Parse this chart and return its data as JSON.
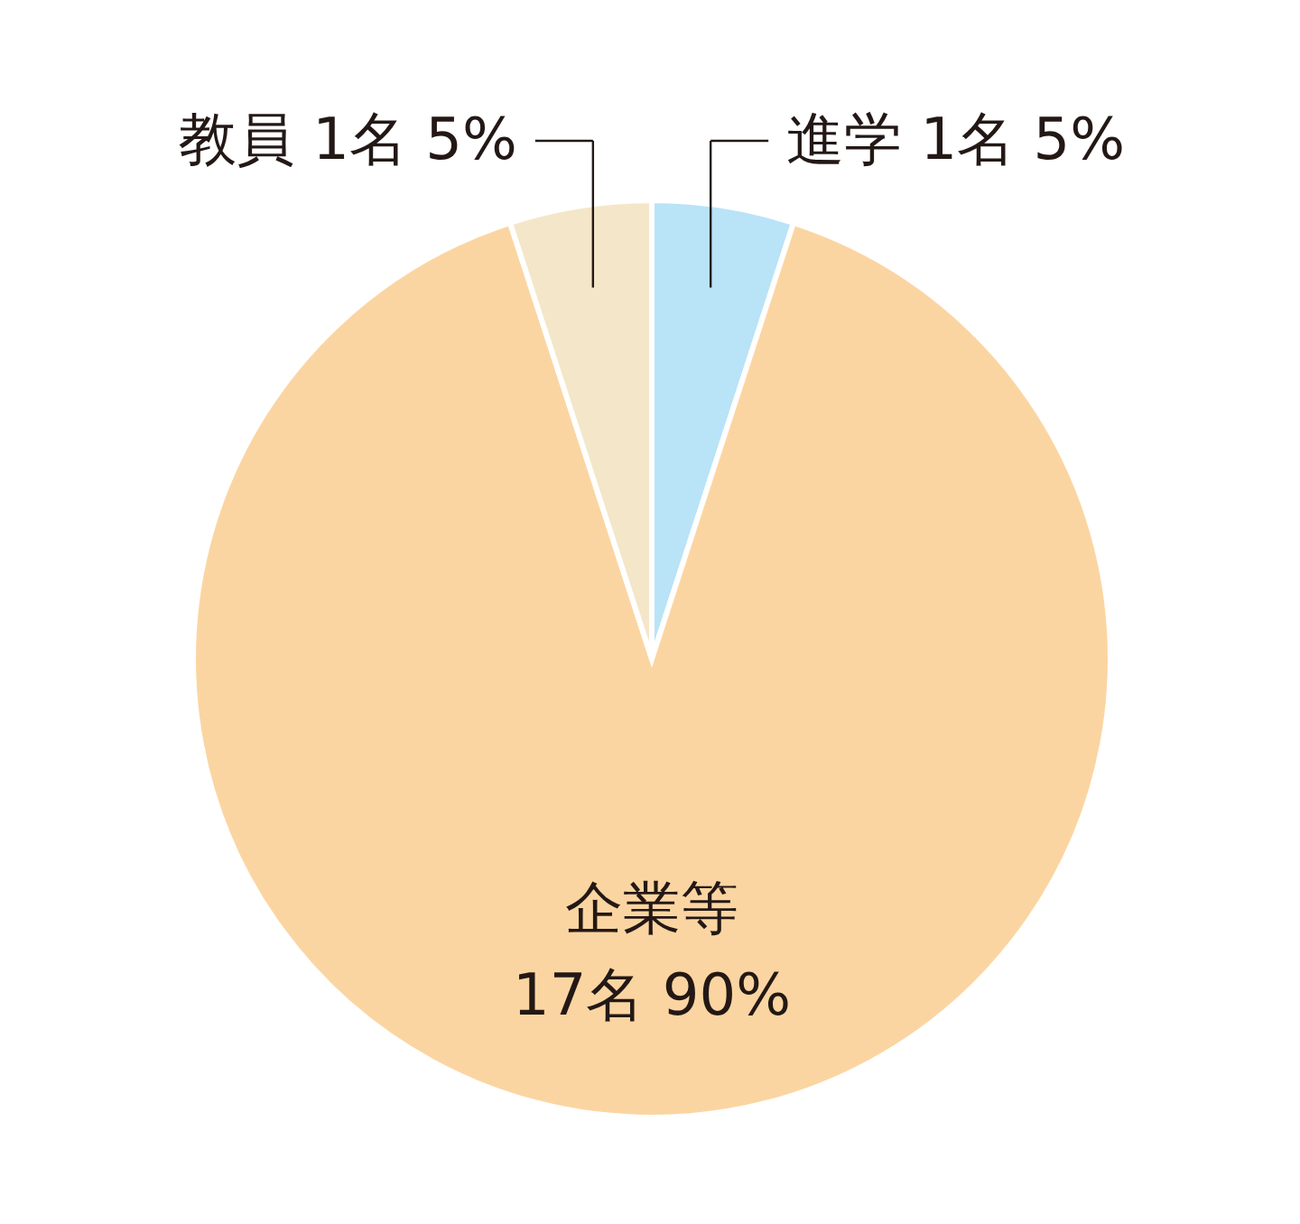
{
  "chart_data": {
    "type": "pie",
    "categories": [
      "進学",
      "企業等",
      "教員"
    ],
    "values": [
      5,
      90,
      5
    ],
    "value_labels": [
      "1名 5%",
      "17名 90%",
      "1名 5%"
    ],
    "colors": [
      "#b9e3f7",
      "#fbd5a1",
      "#f4e6c8"
    ]
  }
}
